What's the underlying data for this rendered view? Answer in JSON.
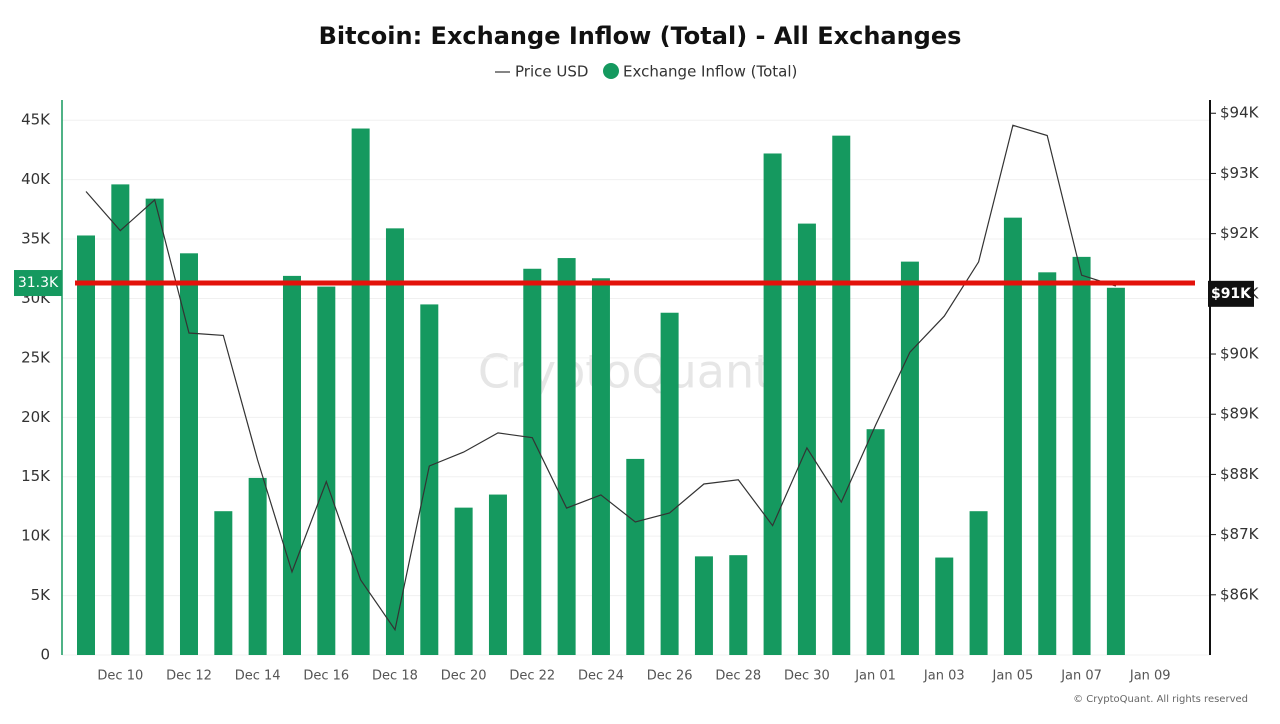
{
  "chart_data": {
    "type": "bar",
    "title": "Bitcoin: Exchange Inflow (Total) - All Exchanges",
    "watermark": "CryptoQuant",
    "footer": "© CryptoQuant. All rights reserved",
    "categories": [
      null,
      "Dec 10",
      null,
      "Dec 12",
      null,
      "Dec 14",
      null,
      "Dec 16",
      null,
      "Dec 18",
      null,
      "Dec 20",
      null,
      "Dec 22",
      null,
      "Dec 24",
      null,
      "Dec 26",
      null,
      "Dec 28",
      null,
      "Dec 30",
      null,
      "Jan 01",
      null,
      "Jan 03",
      null,
      "Jan 05",
      null,
      "Jan 07",
      null,
      "Jan 09"
    ],
    "series": [
      {
        "name": "Price USD",
        "type": "line",
        "axis": "y2",
        "color": "#333333",
        "values": [
          92700,
          92050,
          92560,
          90350,
          90310,
          88240,
          86380,
          87880,
          86250,
          85420,
          88140,
          88370,
          88690,
          88610,
          87440,
          87660,
          87210,
          87360,
          87840,
          87910,
          87150,
          88440,
          87540,
          88820,
          90030,
          90630,
          91530,
          93800,
          93630,
          91310,
          91130,
          null
        ]
      },
      {
        "name": "Exchange Inflow (Total)",
        "type": "bar",
        "color": "#15995f",
        "values": [
          35300,
          39600,
          38400,
          33800,
          12100,
          14900,
          31900,
          31000,
          44300,
          35900,
          29500,
          12400,
          13500,
          32500,
          33400,
          31700,
          16500,
          28800,
          8300,
          8400,
          42200,
          36300,
          43700,
          19000,
          33100,
          8200,
          12100,
          36800,
          32200,
          33500,
          30900,
          null
        ]
      }
    ],
    "ylim": [
      0,
      46700
    ],
    "yticks": [
      0,
      {
        "value": 5000,
        "label": "5K"
      },
      {
        "value": 10000,
        "label": "10K"
      },
      {
        "value": 15000,
        "label": "15K"
      },
      {
        "value": 20000,
        "label": "20K"
      },
      {
        "value": 25000,
        "label": "25K"
      },
      {
        "value": 30000,
        "label": "30K"
      },
      {
        "value": 35000,
        "label": "35K"
      },
      {
        "value": 40000,
        "label": "40K"
      },
      {
        "value": 45000,
        "label": "45K"
      }
    ],
    "y2lim": [
      85000,
      94220
    ],
    "y2ticks": [
      {
        "value": 86000,
        "label": "$86K"
      },
      {
        "value": 87000,
        "label": "$87K"
      },
      {
        "value": 88000,
        "label": "$88K"
      },
      {
        "value": 89000,
        "label": "$89K"
      },
      {
        "value": 90000,
        "label": "$90K"
      },
      {
        "value": 91000,
        "label": "$91K"
      },
      {
        "value": 92000,
        "label": "$92K"
      },
      {
        "value": 93000,
        "label": "$93K"
      },
      {
        "value": 94000,
        "label": "$94K"
      }
    ],
    "grid": true,
    "legend": "top",
    "reference_line": {
      "value": 31300,
      "label": "31.3K",
      "price_value": 91000,
      "price_label": "$91K",
      "color": "#e3120b"
    }
  }
}
